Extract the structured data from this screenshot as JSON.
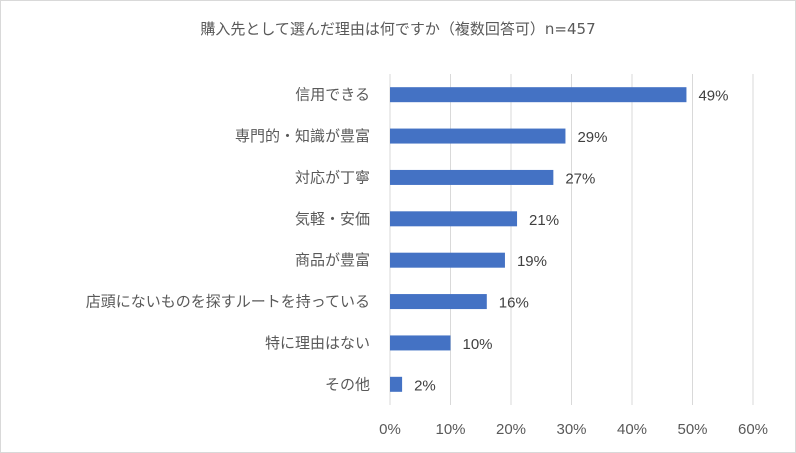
{
  "chart_data": {
    "type": "bar",
    "orientation": "horizontal",
    "title": "購入先として選んだ理由は何ですか（複数回答可）n=457",
    "categories": [
      "信用できる",
      "専門的・知識が豊富",
      "対応が丁寧",
      "気軽・安価",
      "商品が豊富",
      "店頭にないものを探すルートを持っている",
      "特に理由はない",
      "その他"
    ],
    "values": [
      49,
      29,
      27,
      21,
      19,
      16,
      10,
      2
    ],
    "data_labels": [
      "49%",
      "29%",
      "27%",
      "21%",
      "19%",
      "16%",
      "10%",
      "2%"
    ],
    "xlim": [
      0,
      60
    ],
    "xticks": [
      "0%",
      "10%",
      "20%",
      "30%",
      "40%",
      "50%",
      "60%"
    ],
    "xlabel": "",
    "ylabel": "",
    "grid": "vertical",
    "legend": "none",
    "bar_color": "#4472c4"
  }
}
